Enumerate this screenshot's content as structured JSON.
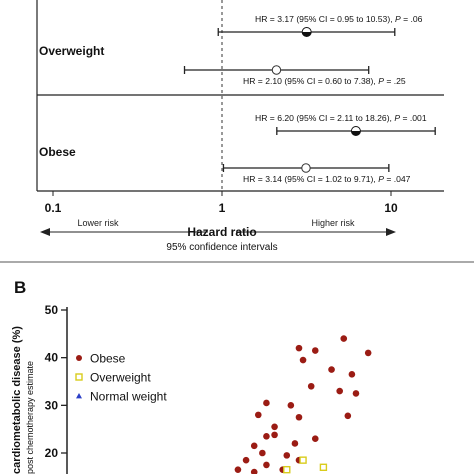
{
  "chart_data": [
    {
      "type": "forest",
      "xlabel": "Hazard ratio",
      "xlabel_sub": "95% confidence intervals",
      "xscale": "log",
      "xlim": [
        0.1,
        10
      ],
      "xticks": [
        "0.1",
        "1",
        "10"
      ],
      "reference_line": 1,
      "direction_labels": {
        "left": "Lower risk",
        "right": "Higher risk"
      },
      "groups": [
        {
          "label": "Overweight",
          "rows": [
            {
              "marker": "filled",
              "hr": 3.17,
              "ci": [
                0.95,
                10.53
              ],
              "text": "HR = 3.17  (95% CI = 0.95 to 10.53),",
              "p_label": "P",
              "p_value": "= .06"
            },
            {
              "marker": "open",
              "hr": 2.1,
              "ci": [
                0.6,
                7.38
              ],
              "text": "HR = 2.10 (95% CI = 0.60 to 7.38),",
              "p_label": "P",
              "p_value": "= .25"
            }
          ]
        },
        {
          "label": "Obese",
          "rows": [
            {
              "marker": "filled",
              "hr": 6.2,
              "ci": [
                2.11,
                18.26
              ],
              "text": "HR = 6.20  (95% CI = 2.11 to 18.26),",
              "p_label": "P",
              "p_value": "= .001"
            },
            {
              "marker": "open",
              "hr": 3.14,
              "ci": [
                1.02,
                9.71
              ],
              "text": "HR = 3.14 (95% CI = 1.02 to 9.71),",
              "p_label": "P",
              "p_value": "= .047"
            }
          ]
        }
      ]
    },
    {
      "type": "scatter",
      "panel_label": "B",
      "ylabel": "cardiometabolic disease (%)",
      "ylabel_sub": "post chemotherapy estimate",
      "ylim": [
        15,
        50
      ],
      "yticks": [
        "20",
        "30",
        "40",
        "50"
      ],
      "legend_placement": "top-left",
      "series": [
        {
          "name": "Obese",
          "marker": "circle",
          "color": "#9b1c14",
          "points": [
            [
              0.68,
              44
            ],
            [
              0.57,
              42
            ],
            [
              0.61,
              41.5
            ],
            [
              0.74,
              41
            ],
            [
              0.58,
              39.5
            ],
            [
              0.65,
              37.5
            ],
            [
              0.7,
              36.5
            ],
            [
              0.6,
              34
            ],
            [
              0.67,
              33
            ],
            [
              0.71,
              32.5
            ],
            [
              0.49,
              30.5
            ],
            [
              0.55,
              30
            ],
            [
              0.47,
              28
            ],
            [
              0.57,
              27.5
            ],
            [
              0.69,
              27.8
            ],
            [
              0.51,
              25.5
            ],
            [
              0.49,
              23.5
            ],
            [
              0.51,
              23.8
            ],
            [
              0.61,
              23
            ],
            [
              0.56,
              22
            ],
            [
              0.46,
              21.5
            ],
            [
              0.48,
              20
            ],
            [
              0.54,
              19.5
            ],
            [
              0.44,
              18.5
            ],
            [
              0.57,
              18.5
            ],
            [
              0.49,
              17.5
            ],
            [
              0.42,
              16.5
            ],
            [
              0.46,
              16
            ],
            [
              0.53,
              16.5
            ]
          ]
        },
        {
          "name": "Overweight",
          "marker": "square",
          "color": "#d9cc1c",
          "points": [
            [
              0.58,
              18.5
            ],
            [
              0.63,
              17
            ],
            [
              0.54,
              16.5
            ]
          ]
        },
        {
          "name": "Normal weight",
          "marker": "triangle",
          "color": "#2b3fc7",
          "points": []
        }
      ]
    }
  ]
}
